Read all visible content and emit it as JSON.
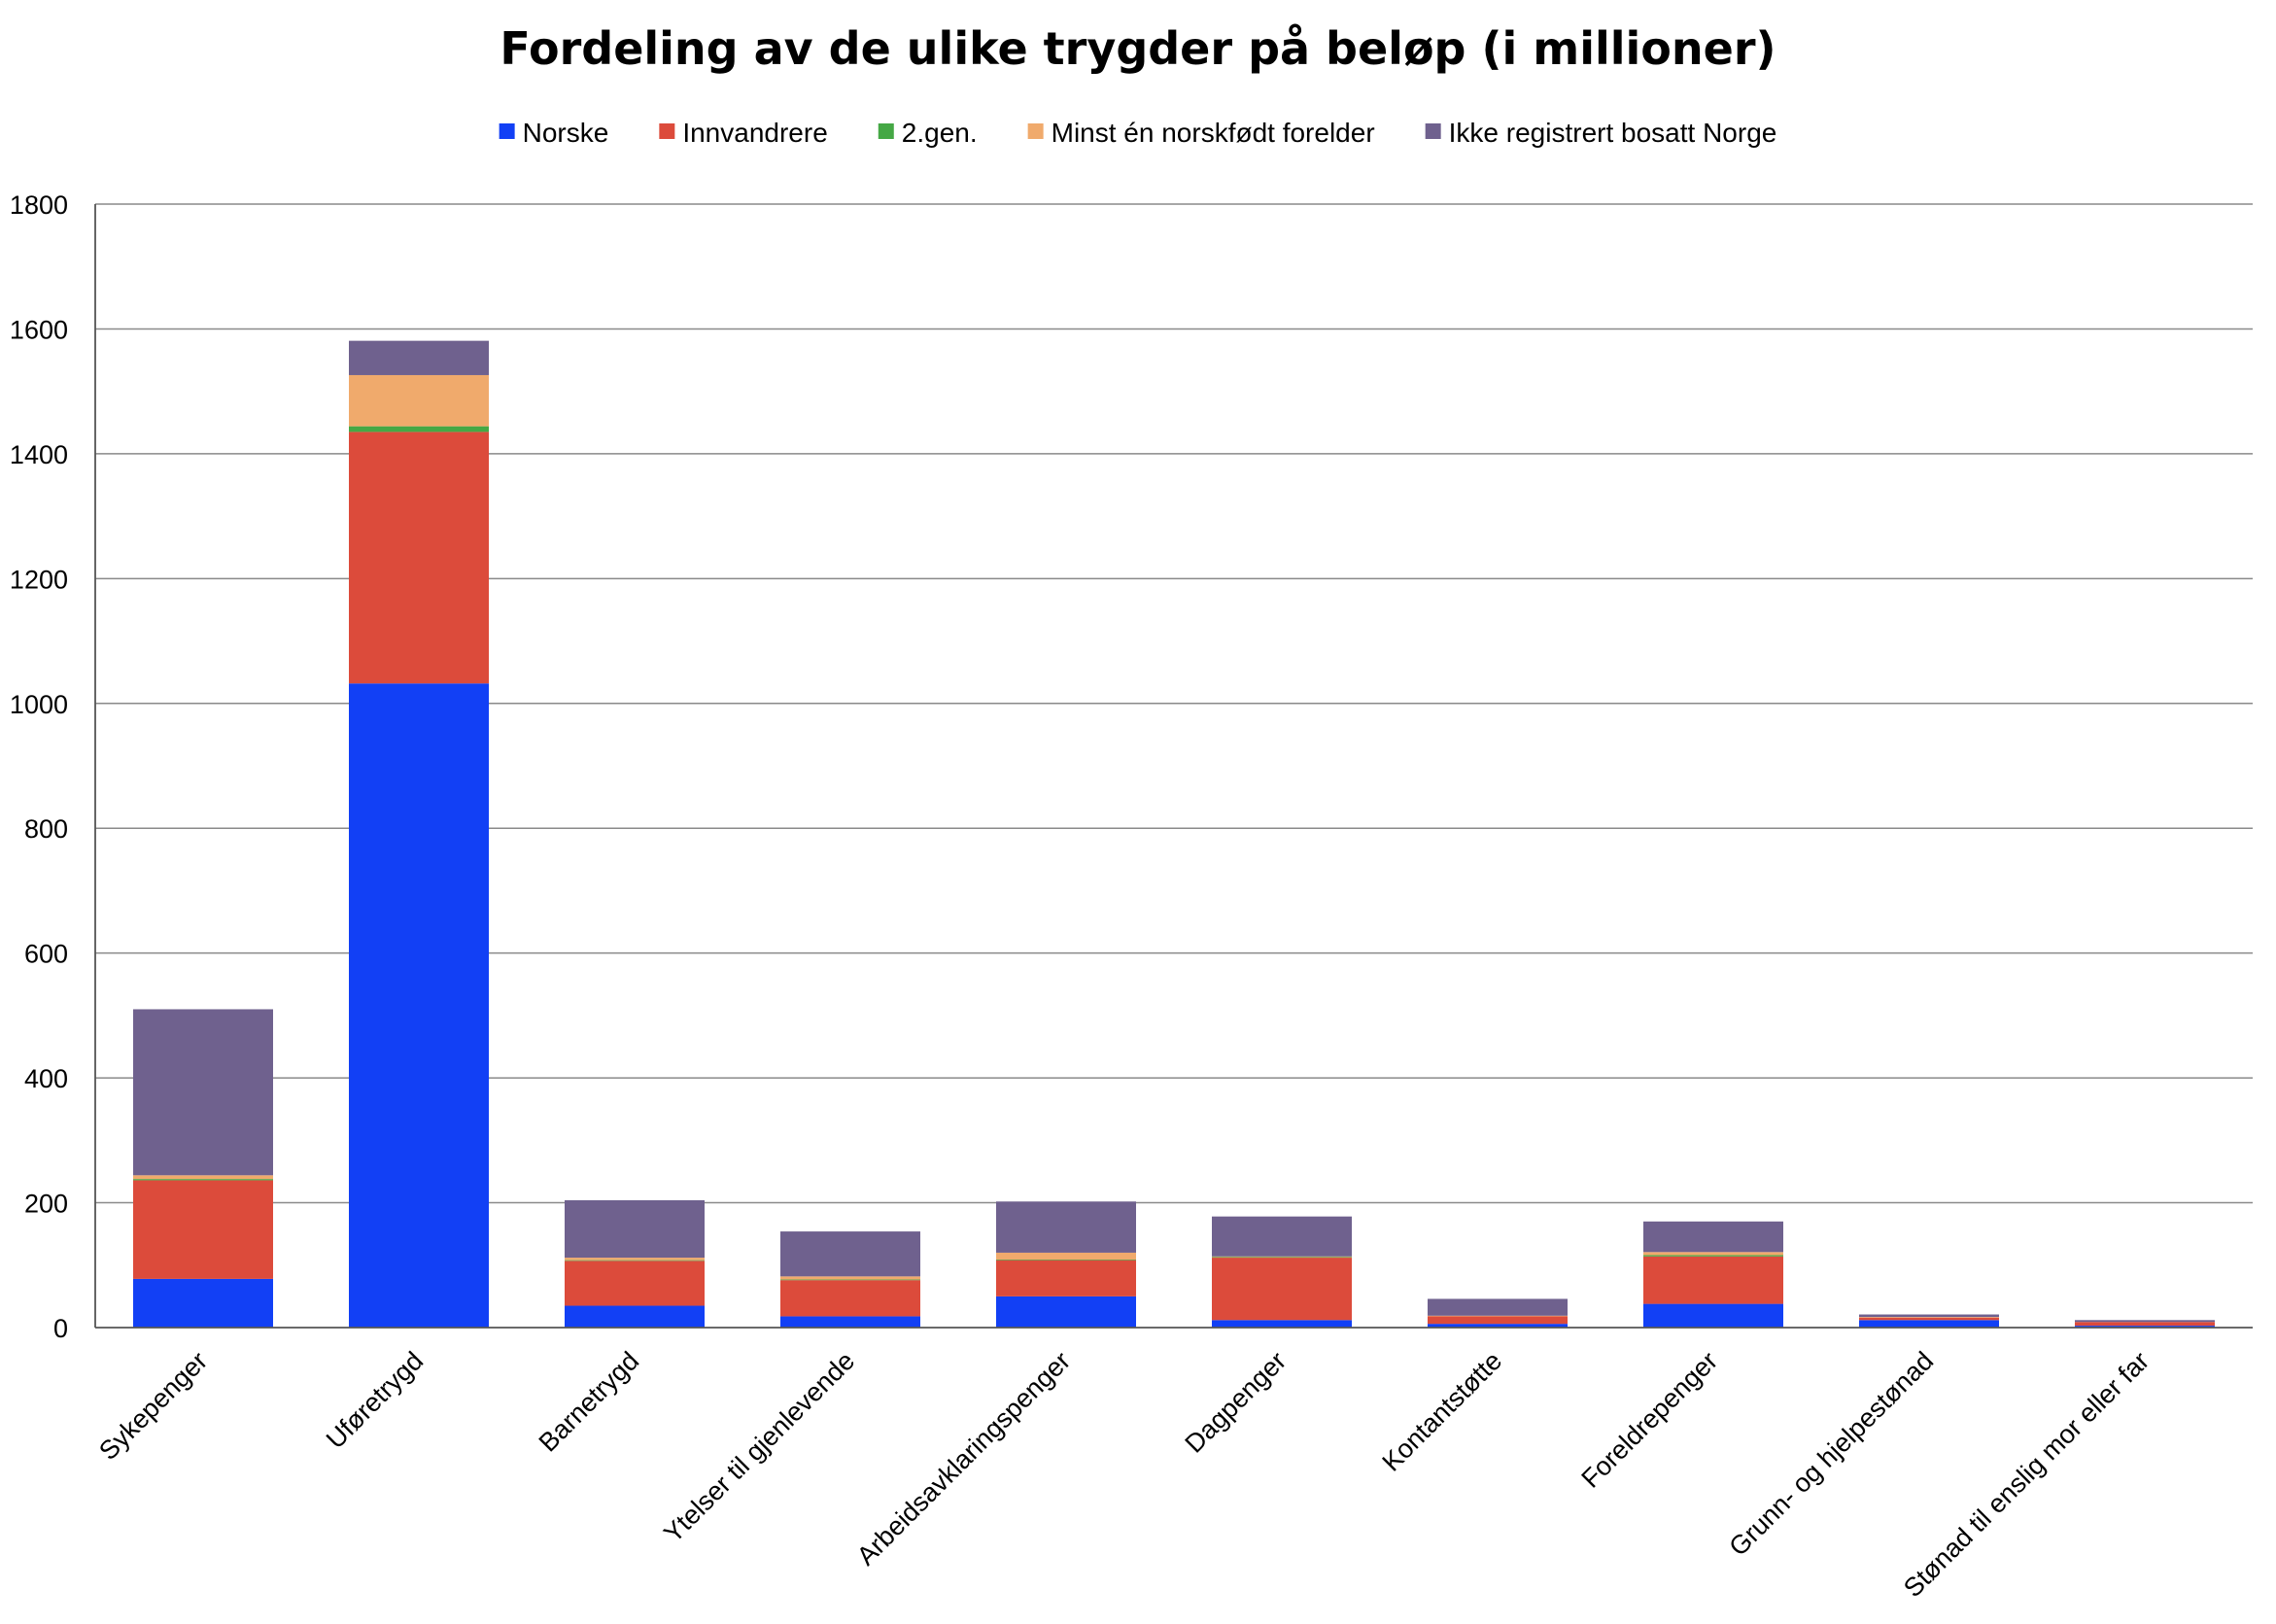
{
  "chart_data": {
    "type": "bar",
    "stacked": true,
    "title": "Fordeling av de ulike trygder på beløp (i millioner)",
    "xlabel": "",
    "ylabel": "",
    "ylim": [
      0,
      1800
    ],
    "yticks": [
      0,
      200,
      400,
      600,
      800,
      1000,
      1200,
      1400,
      1600,
      1800
    ],
    "grid": true,
    "legend_position": "top-center",
    "categories": [
      "Sykepenger",
      "Uføretrygd",
      "Barnetrygd",
      "Ytelser til gjenlevende",
      "Arbeidsavklaringspenger",
      "Dagpenger",
      "Kontantstøtte",
      "Foreldrepenger",
      "Grunn- og hjelpestønad",
      "Stønad til enslig mor eller far"
    ],
    "series": [
      {
        "name": "Norske",
        "color": "#1240f5",
        "values": [
          78,
          1032,
          35,
          18,
          50,
          12,
          6,
          38,
          12,
          3
        ]
      },
      {
        "name": "Innvandrere",
        "color": "#dc4b3b",
        "values": [
          158,
          403,
          72,
          58,
          58,
          100,
          12,
          76,
          4,
          6
        ]
      },
      {
        "name": "2.gen.",
        "color": "#45a845",
        "values": [
          2,
          9,
          1,
          1,
          1,
          1,
          0,
          2,
          0,
          0
        ]
      },
      {
        "name": "Minst én norskfødt forelder",
        "color": "#f0aa6c",
        "values": [
          6,
          82,
          4,
          5,
          11,
          1,
          1,
          5,
          1,
          0
        ]
      },
      {
        "name": "Ikke registrert bosatt Norge",
        "color": "#6f618e",
        "values": [
          266,
          55,
          92,
          72,
          82,
          64,
          27,
          49,
          4,
          3
        ]
      }
    ]
  }
}
